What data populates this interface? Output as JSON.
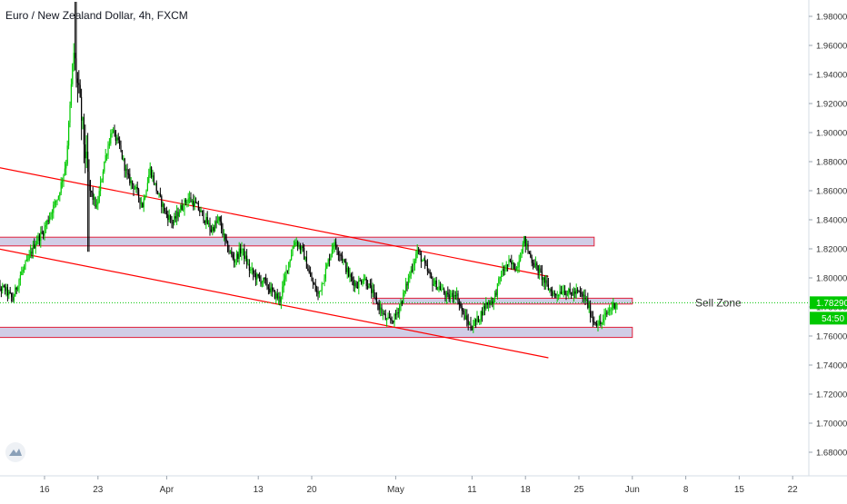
{
  "title": "Euro / New Zealand Dollar, 4h, FXCM",
  "colors": {
    "up": "#00c800",
    "down": "#000000",
    "trend": "#ff0000",
    "zone_fill": "#d1cde6",
    "zone_border": "#e0203a",
    "price_line": "#00c800",
    "price_label_bg": "#00c800",
    "grid": "#f0f3f7",
    "axis_text": "#333333"
  },
  "current_price_label": "1.78290",
  "countdown_label": "54:50",
  "annotation_text": "Sell Zone",
  "logo_icon": "tradingview-logo-icon",
  "chart_data": {
    "type": "candlestick",
    "title": "Euro / New Zealand Dollar, 4h, FXCM",
    "xlabel": "",
    "ylabel": "",
    "ylim": [
      1.668,
      1.99
    ],
    "yticks": [
      "1.98000",
      "1.96000",
      "1.94000",
      "1.92000",
      "1.90000",
      "1.88000",
      "1.86000",
      "1.84000",
      "1.82000",
      "1.80000",
      "1.78000",
      "1.76000",
      "1.74000",
      "1.72000",
      "1.70000",
      "1.68000"
    ],
    "xticks": [
      "16",
      "23",
      "Apr",
      "13",
      "20",
      "May",
      "11",
      "18",
      "25",
      "Jun",
      "8",
      "15",
      "22"
    ],
    "x_tick_dates": [
      "2020-03-16",
      "2020-03-23",
      "2020-04-01",
      "2020-04-13",
      "2020-04-20",
      "2020-05-01",
      "2020-05-11",
      "2020-05-18",
      "2020-05-25",
      "2020-06-01",
      "2020-06-08",
      "2020-06-15",
      "2020-06-22"
    ],
    "grid": false,
    "close_path": [
      [
        "2020-03-09",
        1.798
      ],
      [
        "2020-03-10",
        1.793
      ],
      [
        "2020-03-11",
        1.792
      ],
      [
        "2020-03-12",
        1.785
      ],
      [
        "2020-03-13",
        1.802
      ],
      [
        "2020-03-14",
        1.812
      ],
      [
        "2020-03-15",
        1.825
      ],
      [
        "2020-03-16",
        1.832
      ],
      [
        "2020-03-17",
        1.845
      ],
      [
        "2020-03-18",
        1.857
      ],
      [
        "2020-03-19",
        1.88
      ],
      [
        "2020-03-20",
        1.955
      ],
      [
        "2020-03-21",
        1.91
      ],
      [
        "2020-03-22",
        1.862
      ],
      [
        "2020-03-23",
        1.848
      ],
      [
        "2020-03-24",
        1.88
      ],
      [
        "2020-03-25",
        1.902
      ],
      [
        "2020-03-26",
        1.89
      ],
      [
        "2020-03-27",
        1.87
      ],
      [
        "2020-03-28",
        1.862
      ],
      [
        "2020-03-29",
        1.85
      ],
      [
        "2020-03-30",
        1.875
      ],
      [
        "2020-03-31",
        1.858
      ],
      [
        "2020-04-01",
        1.845
      ],
      [
        "2020-04-02",
        1.838
      ],
      [
        "2020-04-03",
        1.848
      ],
      [
        "2020-04-04",
        1.855
      ],
      [
        "2020-04-05",
        1.85
      ],
      [
        "2020-04-06",
        1.842
      ],
      [
        "2020-04-07",
        1.833
      ],
      [
        "2020-04-08",
        1.84
      ],
      [
        "2020-04-09",
        1.822
      ],
      [
        "2020-04-10",
        1.812
      ],
      [
        "2020-04-11",
        1.82
      ],
      [
        "2020-04-12",
        1.806
      ],
      [
        "2020-04-13",
        1.8
      ],
      [
        "2020-04-14",
        1.797
      ],
      [
        "2020-04-15",
        1.79
      ],
      [
        "2020-04-16",
        1.785
      ],
      [
        "2020-04-17",
        1.808
      ],
      [
        "2020-04-18",
        1.826
      ],
      [
        "2020-04-19",
        1.818
      ],
      [
        "2020-04-20",
        1.8
      ],
      [
        "2020-04-21",
        1.788
      ],
      [
        "2020-04-22",
        1.805
      ],
      [
        "2020-04-23",
        1.824
      ],
      [
        "2020-04-24",
        1.816
      ],
      [
        "2020-04-25",
        1.802
      ],
      [
        "2020-04-26",
        1.795
      ],
      [
        "2020-04-27",
        1.8
      ],
      [
        "2020-04-28",
        1.791
      ],
      [
        "2020-04-29",
        1.78
      ],
      [
        "2020-04-30",
        1.77
      ],
      [
        "2020-05-01",
        1.772
      ],
      [
        "2020-05-02",
        1.785
      ],
      [
        "2020-05-03",
        1.802
      ],
      [
        "2020-05-04",
        1.819
      ],
      [
        "2020-05-05",
        1.808
      ],
      [
        "2020-05-06",
        1.797
      ],
      [
        "2020-05-07",
        1.793
      ],
      [
        "2020-05-08",
        1.786
      ],
      [
        "2020-05-09",
        1.79
      ],
      [
        "2020-05-10",
        1.775
      ],
      [
        "2020-05-11",
        1.766
      ],
      [
        "2020-05-12",
        1.772
      ],
      [
        "2020-05-13",
        1.782
      ],
      [
        "2020-05-14",
        1.785
      ],
      [
        "2020-05-15",
        1.803
      ],
      [
        "2020-05-16",
        1.81
      ],
      [
        "2020-05-17",
        1.807
      ],
      [
        "2020-05-18",
        1.826
      ],
      [
        "2020-05-19",
        1.812
      ],
      [
        "2020-05-20",
        1.804
      ],
      [
        "2020-05-21",
        1.794
      ],
      [
        "2020-05-22",
        1.788
      ],
      [
        "2020-05-23",
        1.792
      ],
      [
        "2020-05-24",
        1.789
      ],
      [
        "2020-05-25",
        1.79
      ],
      [
        "2020-05-26",
        1.786
      ],
      [
        "2020-05-27",
        1.771
      ],
      [
        "2020-05-28",
        1.768
      ],
      [
        "2020-05-29",
        1.777
      ],
      [
        "2020-05-30",
        1.783
      ]
    ],
    "lines": [
      {
        "kind": "trendline",
        "from": [
          "2020-03-09",
          1.877
        ],
        "to": [
          "2020-05-21",
          1.801
        ]
      },
      {
        "kind": "trendline",
        "from": [
          "2020-03-09",
          1.821
        ],
        "to": [
          "2020-05-21",
          1.745
        ]
      },
      {
        "kind": "zone",
        "from": [
          "2020-03-09",
          1.828
        ],
        "to": [
          "2020-05-27",
          1.822
        ]
      },
      {
        "kind": "zone",
        "from": [
          "2020-04-28",
          1.786
        ],
        "to": [
          "2020-06-01",
          1.782
        ]
      },
      {
        "kind": "zone",
        "from": [
          "2020-03-09",
          1.766
        ],
        "to": [
          "2020-06-01",
          1.759
        ]
      }
    ],
    "current_price": 1.7829
  }
}
